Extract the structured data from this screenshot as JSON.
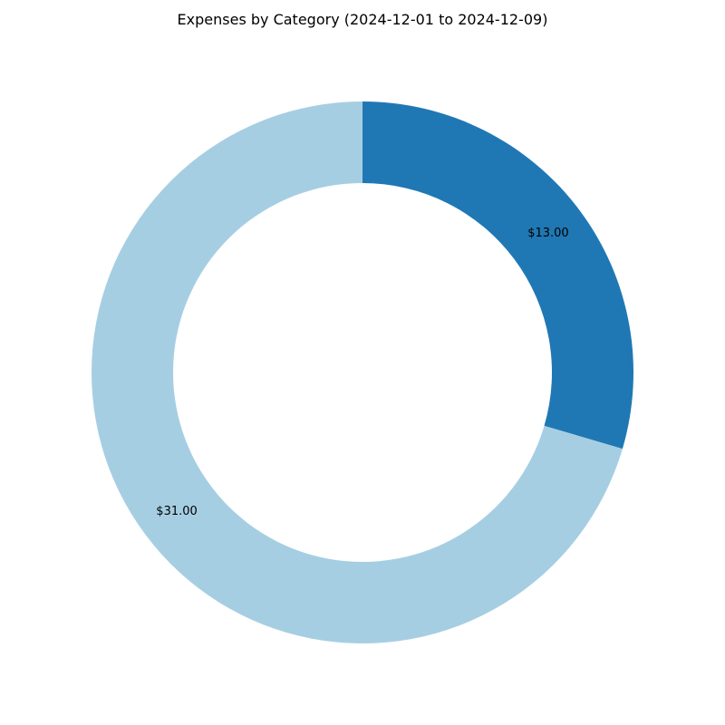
{
  "chart_data": {
    "type": "pie",
    "style": "donut",
    "title": "Expenses by Category (2024-12-01 to 2024-12-09)",
    "start_angle_deg": 90,
    "direction": "clockwise",
    "slices": [
      {
        "value": 13.0,
        "label": "$13.00",
        "color": "#1f78b4"
      },
      {
        "value": 31.0,
        "label": "$31.00",
        "color": "#a6cee3"
      }
    ]
  }
}
